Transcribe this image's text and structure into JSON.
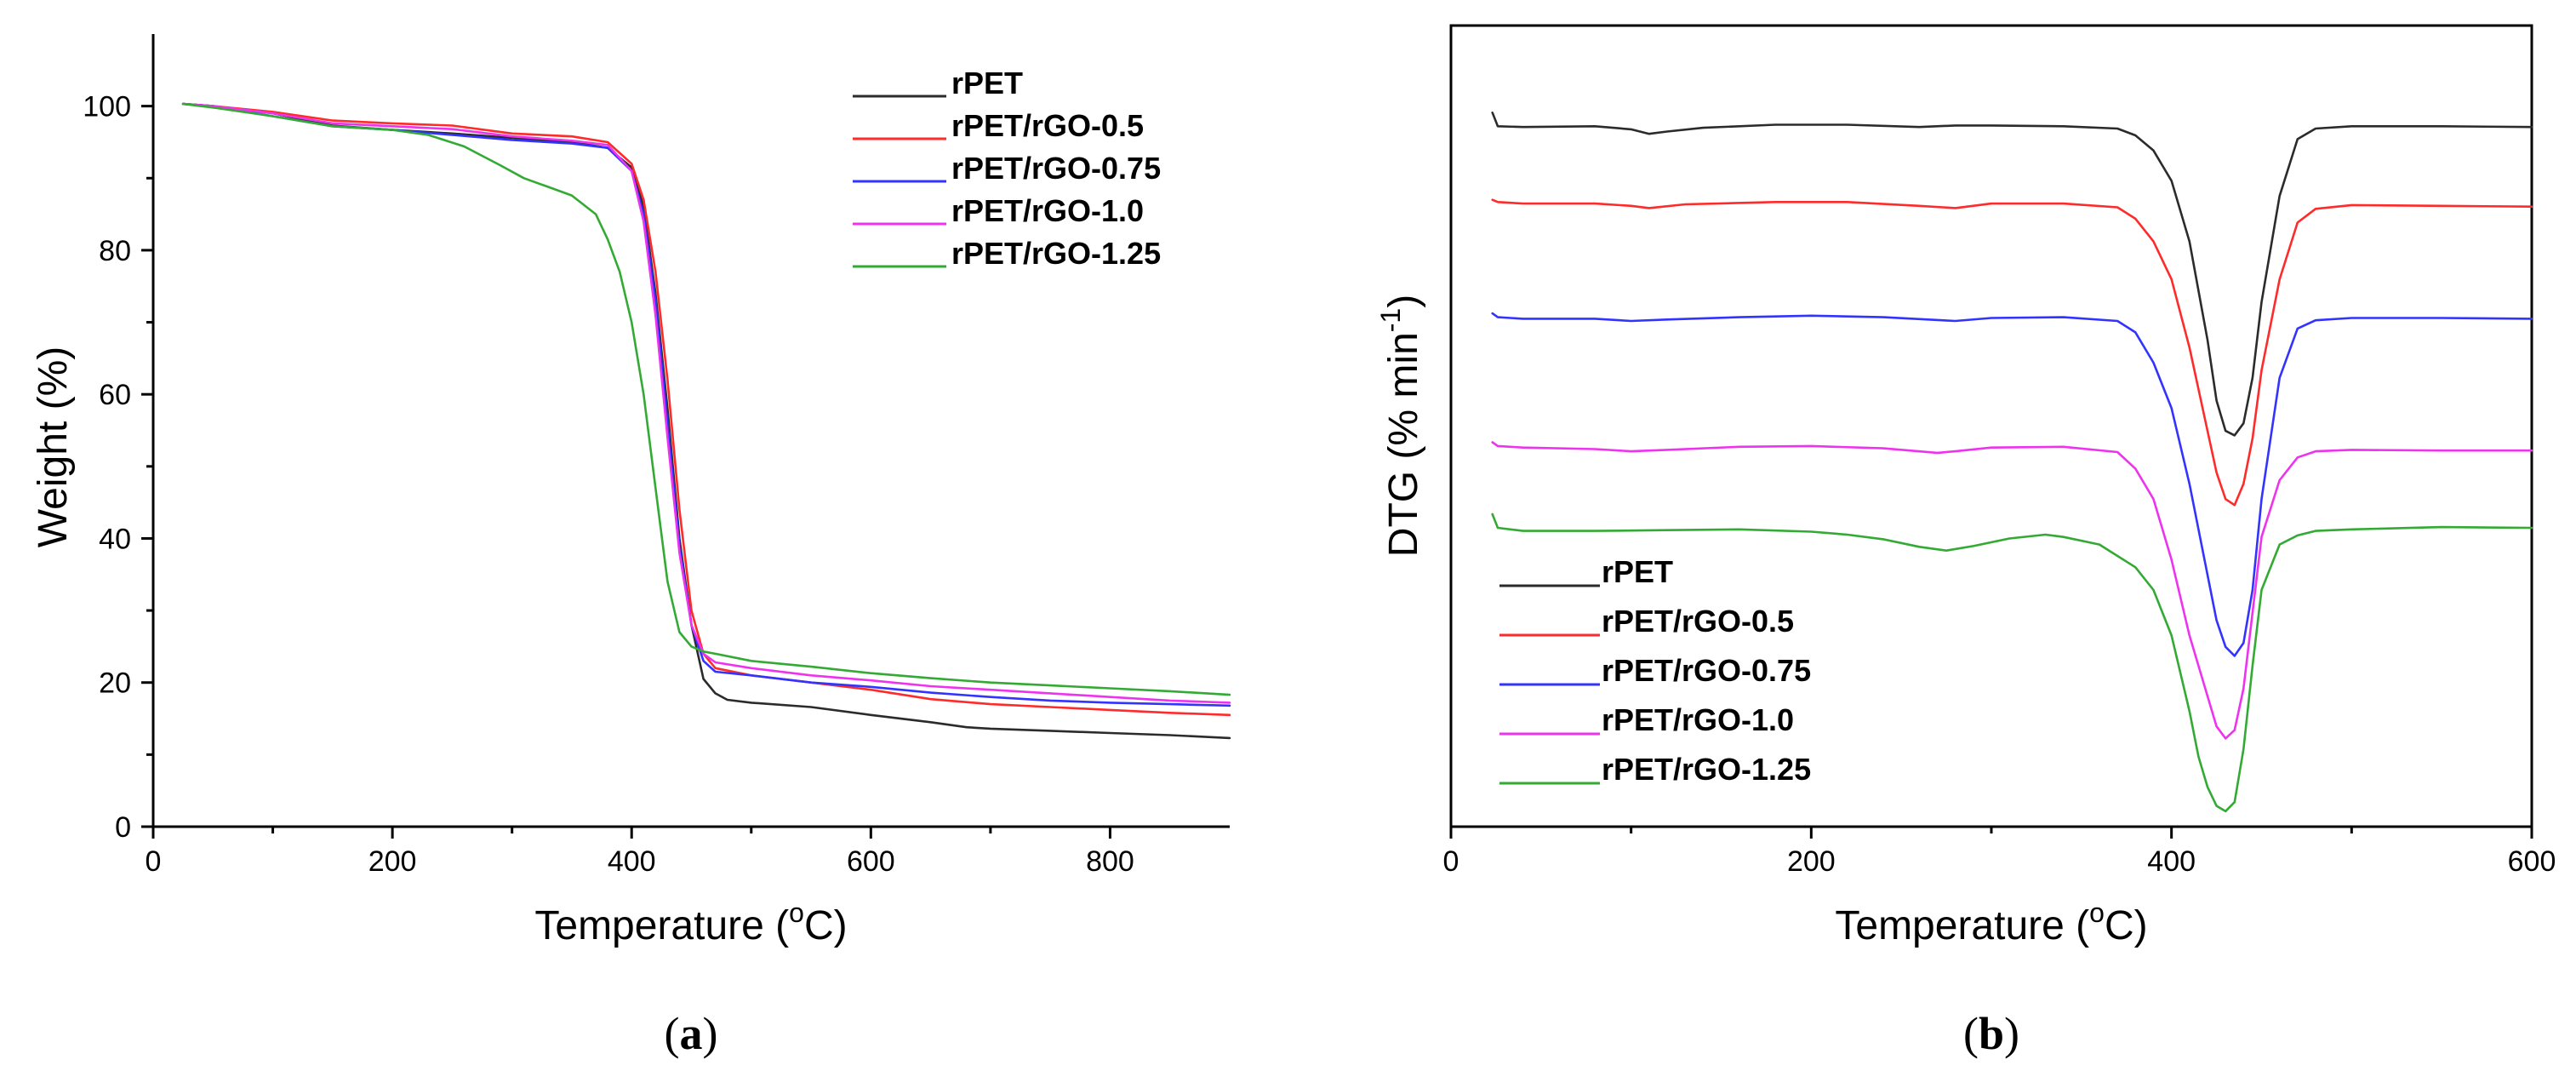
{
  "chart_data": [
    {
      "type": "line",
      "panel": "a",
      "panel_label": "a",
      "title": "",
      "xlabel": "Temperature (",
      "xlabel_sup": "o",
      "xlabel_unit": "C)",
      "ylabel": "Weight (%)",
      "xlim": [
        0,
        900
      ],
      "ylim": [
        0,
        110
      ],
      "xticks": [
        0,
        200,
        400,
        600,
        800
      ],
      "xtick_labels": [
        "0",
        "200",
        "400",
        "600",
        "800"
      ],
      "yticks": [
        0,
        20,
        40,
        60,
        80,
        100
      ],
      "ytick_labels": [
        "0",
        "20",
        "40",
        "60",
        "80",
        "100"
      ],
      "grid": false,
      "legend_position": "top-right",
      "series": [
        {
          "name": "rPET",
          "color": "#2b2b2b",
          "x": [
            25,
            50,
            100,
            150,
            200,
            250,
            300,
            350,
            380,
            400,
            410,
            420,
            430,
            440,
            450,
            460,
            470,
            480,
            500,
            550,
            600,
            650,
            680,
            700,
            750,
            800,
            850,
            900
          ],
          "y": [
            100.3,
            100,
            99,
            97.3,
            96.7,
            96.2,
            95.6,
            95,
            94.2,
            91.5,
            86,
            74,
            58,
            40,
            28,
            20.5,
            18.5,
            17.6,
            17.2,
            16.6,
            15.5,
            14.5,
            13.8,
            13.6,
            13.3,
            13,
            12.7,
            12.3
          ]
        },
        {
          "name": "rPET/rGO-0.5",
          "color": "#ff2a2a",
          "x": [
            25,
            50,
            100,
            150,
            200,
            250,
            300,
            350,
            380,
            400,
            410,
            420,
            430,
            440,
            450,
            460,
            470,
            500,
            550,
            600,
            650,
            700,
            750,
            800,
            850,
            900
          ],
          "y": [
            100.3,
            100,
            99.2,
            98,
            97.6,
            97.3,
            96.2,
            95.8,
            95,
            92,
            87,
            77,
            62,
            44,
            30,
            24,
            22,
            21,
            20,
            19,
            17.7,
            17,
            16.6,
            16.2,
            15.8,
            15.5
          ]
        },
        {
          "name": "rPET/rGO-0.75",
          "color": "#3333ff",
          "x": [
            25,
            50,
            100,
            150,
            200,
            250,
            300,
            350,
            380,
            400,
            410,
            420,
            430,
            440,
            450,
            460,
            470,
            500,
            550,
            600,
            650,
            700,
            750,
            800,
            850,
            900
          ],
          "y": [
            100.3,
            100,
            98.6,
            97.2,
            96.7,
            96,
            95.3,
            94.8,
            94.2,
            91,
            85,
            73,
            56,
            39,
            28,
            23,
            21.5,
            21,
            20,
            19.4,
            18.6,
            18,
            17.5,
            17.2,
            17,
            16.8
          ]
        },
        {
          "name": "rPET/rGO-1.0",
          "color": "#ee33ee",
          "x": [
            25,
            50,
            100,
            150,
            200,
            250,
            300,
            350,
            380,
            400,
            410,
            420,
            430,
            440,
            450,
            460,
            470,
            500,
            550,
            600,
            650,
            700,
            750,
            800,
            850,
            900
          ],
          "y": [
            100.3,
            100,
            99,
            97.6,
            97.2,
            96.8,
            95.8,
            95.2,
            94.6,
            91,
            84,
            71,
            54,
            38,
            28,
            24,
            22.8,
            22,
            21,
            20.3,
            19.5,
            19,
            18.5,
            18,
            17.5,
            17.2
          ]
        },
        {
          "name": "rPET/rGO-1.25",
          "color": "#33aa33",
          "x": [
            25,
            50,
            100,
            150,
            200,
            230,
            260,
            290,
            310,
            330,
            350,
            370,
            380,
            390,
            400,
            410,
            420,
            430,
            440,
            450,
            460,
            470,
            500,
            550,
            600,
            650,
            700,
            750,
            800,
            850,
            900
          ],
          "y": [
            100.3,
            99.8,
            98.6,
            97.2,
            96.7,
            96,
            94.4,
            91.8,
            90,
            88.8,
            87.6,
            85,
            81.5,
            77,
            70,
            60,
            47,
            34,
            27,
            25,
            24.3,
            24,
            23,
            22.2,
            21.3,
            20.6,
            20,
            19.6,
            19.2,
            18.8,
            18.3
          ]
        }
      ]
    },
    {
      "type": "line",
      "panel": "b",
      "panel_label": "b",
      "title": "",
      "xlabel": "Temperature (",
      "xlabel_sup": "o",
      "xlabel_unit": "C)",
      "ylabel": "DTG (% min",
      "ylabel_sup": "-1",
      "ylabel_end": ")",
      "ylabel_note": "y axis has no numeric tick labels; y values are relative units with curves vertically offset",
      "xlim": [
        0,
        600
      ],
      "ylim": [
        0,
        100
      ],
      "xticks": [
        0,
        200,
        400,
        600
      ],
      "xtick_labels": [
        "0",
        "200",
        "400",
        "600"
      ],
      "grid": false,
      "legend_position": "bottom-left",
      "series": [
        {
          "name": "rPET",
          "color": "#2b2b2b",
          "x": [
            23,
            26,
            40,
            80,
            100,
            110,
            120,
            140,
            180,
            220,
            260,
            280,
            300,
            340,
            370,
            380,
            390,
            400,
            410,
            420,
            425,
            430,
            435,
            440,
            445,
            450,
            460,
            470,
            480,
            500,
            550,
            600
          ],
          "y": [
            93,
            91.2,
            91.1,
            91.2,
            90.8,
            90.2,
            90.5,
            91,
            91.4,
            91.4,
            91.1,
            91.3,
            91.3,
            91.2,
            90.9,
            90,
            88,
            84,
            76,
            63,
            55,
            51,
            50.4,
            52,
            58,
            68,
            82,
            89.5,
            90.9,
            91.2,
            91.2,
            91.1
          ]
        },
        {
          "name": "rPET/rGO-0.5",
          "color": "#ff2a2a",
          "x": [
            23,
            26,
            40,
            80,
            100,
            110,
            130,
            180,
            220,
            260,
            280,
            300,
            340,
            370,
            380,
            390,
            400,
            410,
            420,
            425,
            430,
            435,
            440,
            445,
            450,
            460,
            470,
            480,
            500,
            550,
            600
          ],
          "y": [
            81.5,
            81.2,
            81,
            81,
            80.7,
            80.4,
            80.9,
            81.2,
            81.2,
            80.7,
            80.4,
            81,
            81,
            80.5,
            79,
            76,
            71,
            62,
            51,
            45.5,
            42,
            41.2,
            44,
            50,
            59,
            71,
            78.5,
            80.3,
            80.8,
            80.7,
            80.6
          ]
        },
        {
          "name": "rPET/rGO-0.75",
          "color": "#3333ff",
          "x": [
            23,
            26,
            40,
            80,
            100,
            120,
            160,
            200,
            240,
            280,
            300,
            340,
            370,
            380,
            390,
            400,
            410,
            420,
            425,
            430,
            435,
            440,
            445,
            450,
            460,
            470,
            480,
            500,
            550,
            600
          ],
          "y": [
            66.5,
            66,
            65.8,
            65.8,
            65.5,
            65.7,
            66,
            66.2,
            66,
            65.5,
            65.9,
            66,
            65.5,
            64,
            60,
            54,
            44,
            32,
            26,
            22.5,
            21.3,
            23,
            30,
            42,
            58,
            64.5,
            65.6,
            65.9,
            65.9,
            65.8
          ]
        },
        {
          "name": "rPET/rGO-1.0",
          "color": "#ee33ee",
          "x": [
            23,
            26,
            40,
            80,
            100,
            120,
            160,
            200,
            240,
            270,
            280,
            300,
            340,
            370,
            380,
            390,
            400,
            410,
            420,
            425,
            430,
            435,
            440,
            445,
            450,
            460,
            470,
            480,
            500,
            550,
            600
          ],
          "y": [
            49.5,
            49,
            48.8,
            48.6,
            48.3,
            48.5,
            48.9,
            49,
            48.7,
            48.1,
            48.3,
            48.8,
            48.9,
            48.2,
            46,
            42,
            34,
            24,
            16,
            12,
            10.4,
            11.5,
            17,
            27,
            37,
            44.5,
            47.5,
            48.3,
            48.5,
            48.4,
            48.4
          ]
        },
        {
          "name": "rPET/rGO-1.25",
          "color": "#33aa33",
          "x": [
            23,
            26,
            40,
            80,
            120,
            160,
            200,
            220,
            240,
            260,
            275,
            290,
            310,
            330,
            340,
            360,
            380,
            390,
            400,
            410,
            415,
            420,
            425,
            430,
            435,
            440,
            445,
            450,
            460,
            470,
            480,
            500,
            550,
            600
          ],
          "y": [
            40,
            38.2,
            37.8,
            37.8,
            37.9,
            38,
            37.7,
            37.3,
            36.7,
            35.7,
            35.2,
            35.8,
            36.8,
            37.3,
            37,
            36,
            33,
            30,
            24,
            14,
            8,
            4,
            1.5,
            0.8,
            2,
            9,
            20,
            30,
            36,
            37.2,
            37.8,
            38,
            38.3,
            38.2
          ]
        }
      ]
    }
  ]
}
